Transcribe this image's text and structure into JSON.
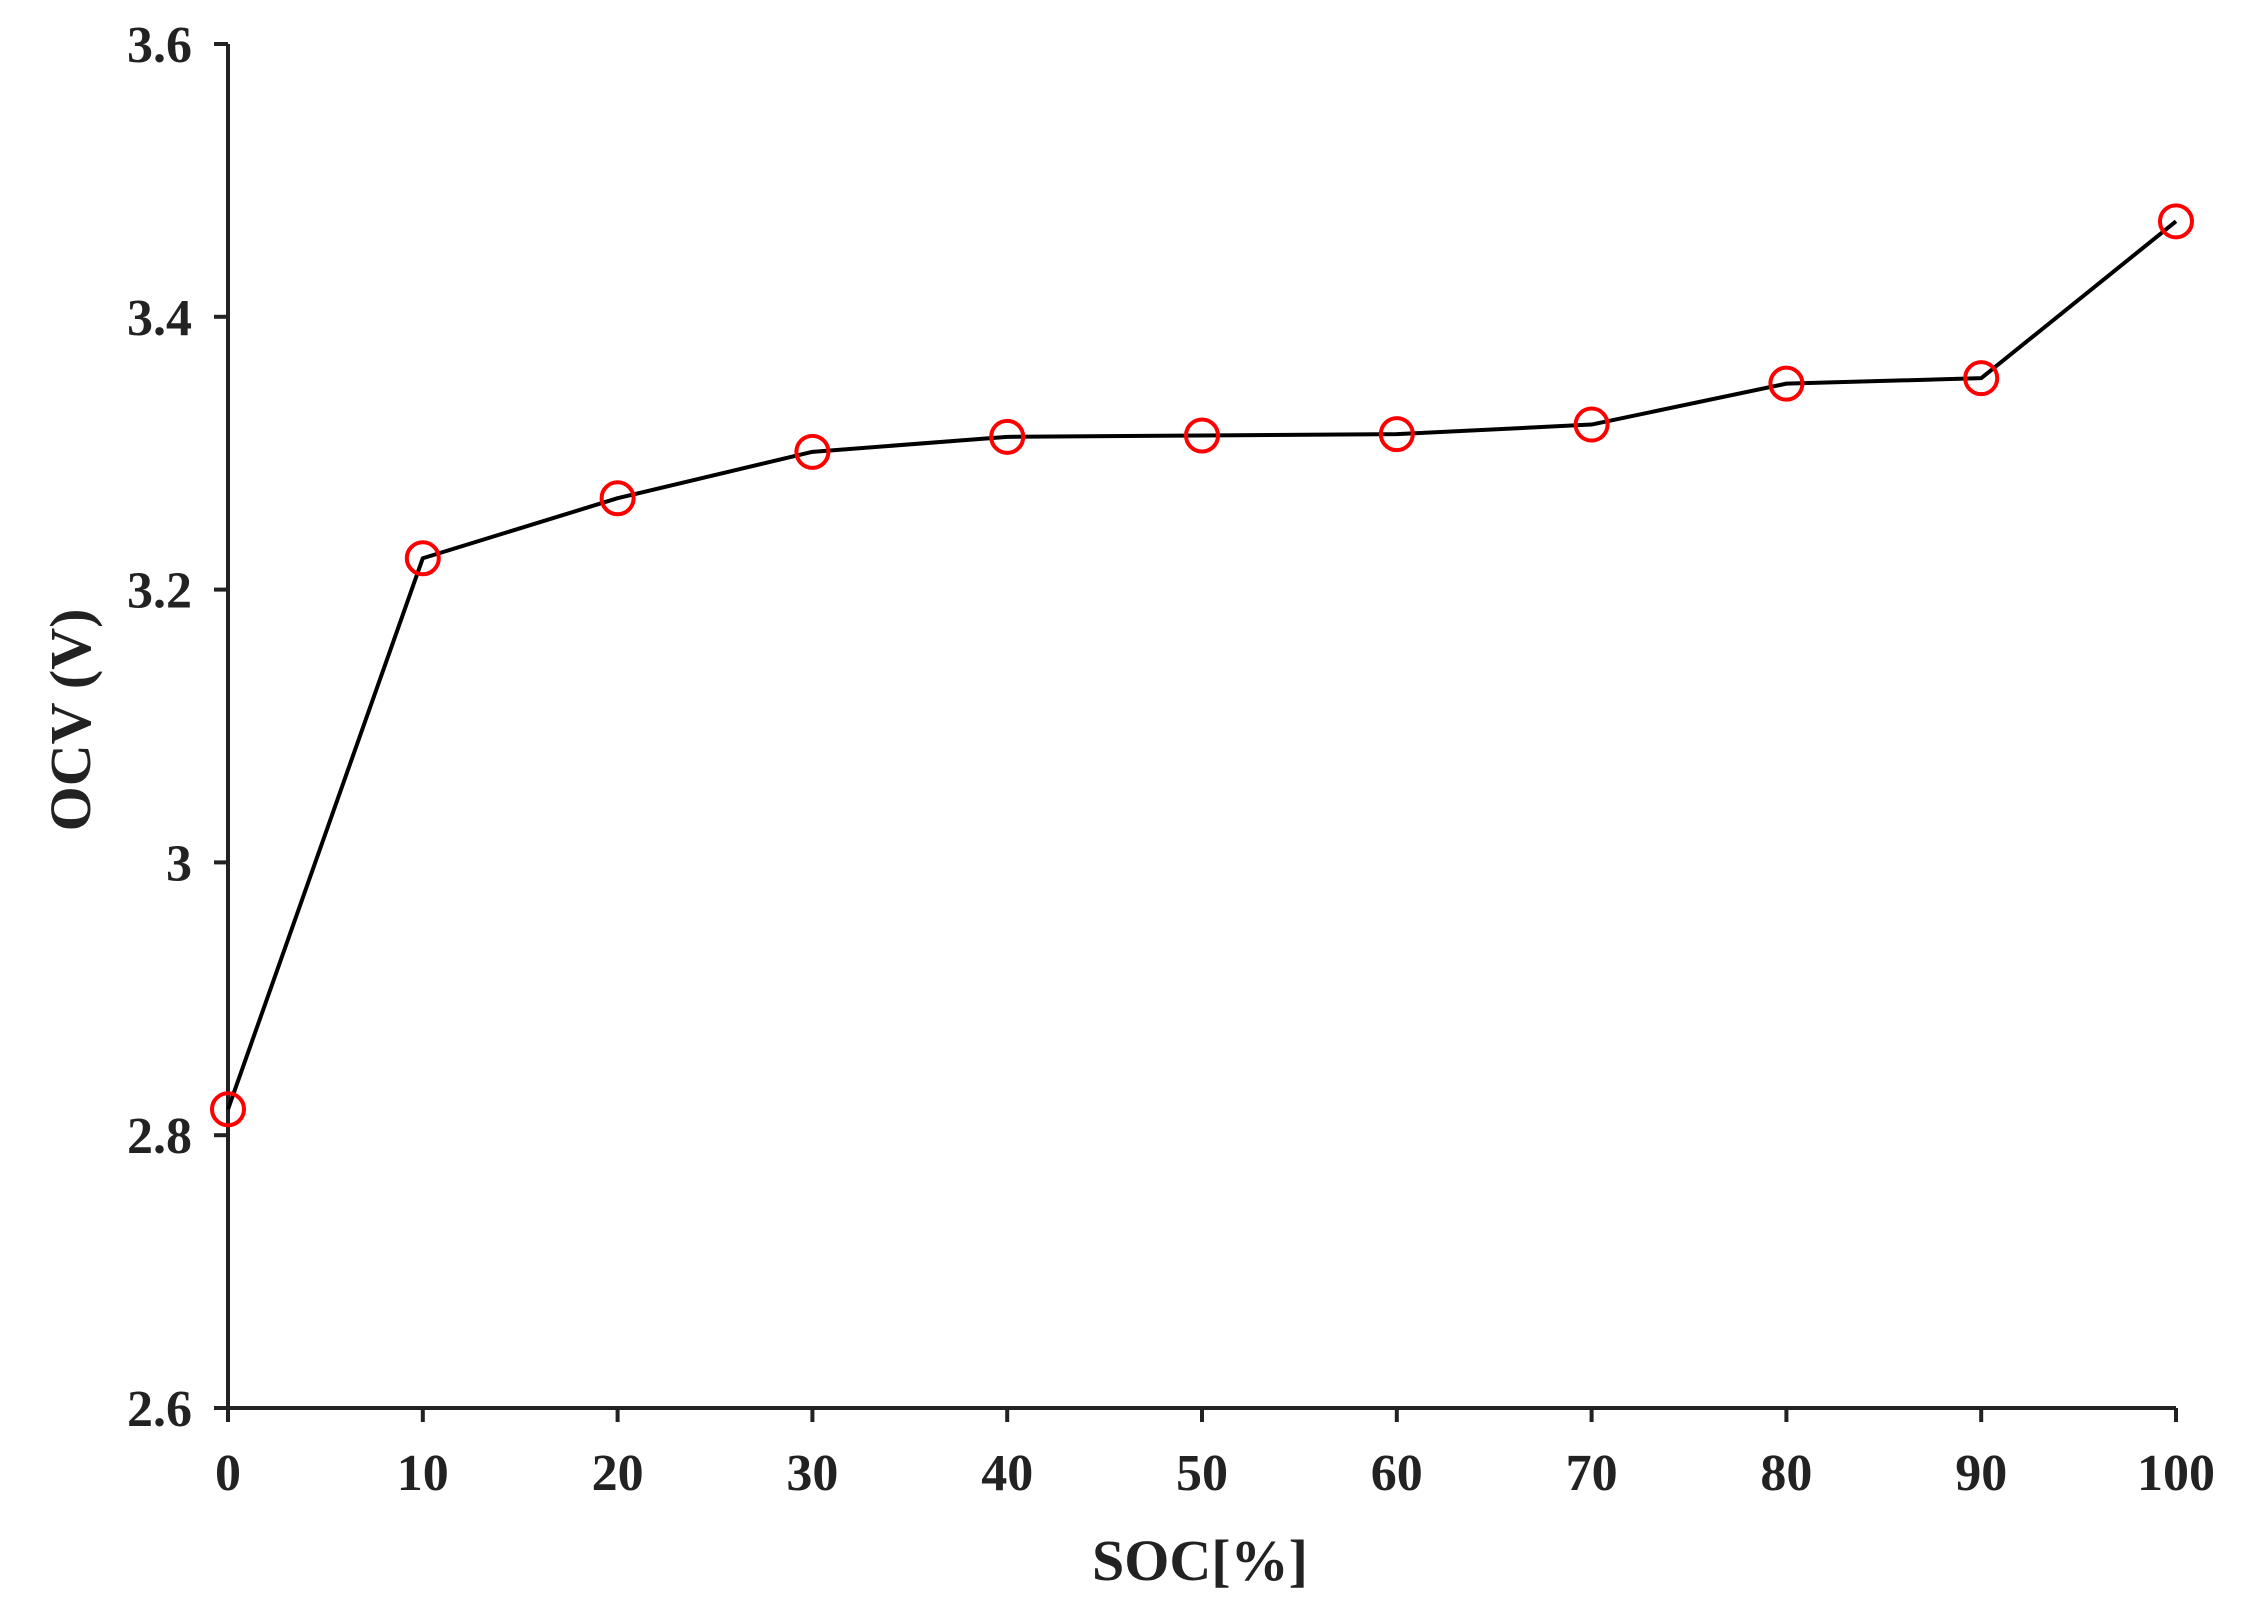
{
  "chart_data": {
    "type": "line",
    "title": "",
    "xlabel": "SOC[%]",
    "ylabel": "OCV (V)",
    "xlim": [
      0,
      100
    ],
    "ylim": [
      2.6,
      3.6
    ],
    "x_ticks": [
      0,
      10,
      20,
      30,
      40,
      50,
      60,
      70,
      80,
      90,
      100
    ],
    "x_tick_labels": [
      "0",
      "10",
      "20",
      "30",
      "40",
      "50",
      "60",
      "70",
      "80",
      "90",
      "100"
    ],
    "y_ticks": [
      2.6,
      2.8,
      3.0,
      3.2,
      3.4,
      3.6
    ],
    "y_tick_labels": [
      "2.6",
      "2.8",
      "3",
      "3.2",
      "3.4",
      "3.6"
    ],
    "grid": false,
    "legend": "none",
    "series": [
      {
        "x": [
          0,
          10,
          20,
          30,
          40,
          50,
          60,
          70,
          80,
          90,
          100
        ],
        "y": [
          2.819,
          3.223,
          3.267,
          3.301,
          3.312,
          3.313,
          3.314,
          3.321,
          3.351,
          3.355,
          3.47
        ],
        "line_color": "#000000",
        "marker": "circle",
        "marker_color": "#ff0000"
      }
    ]
  }
}
